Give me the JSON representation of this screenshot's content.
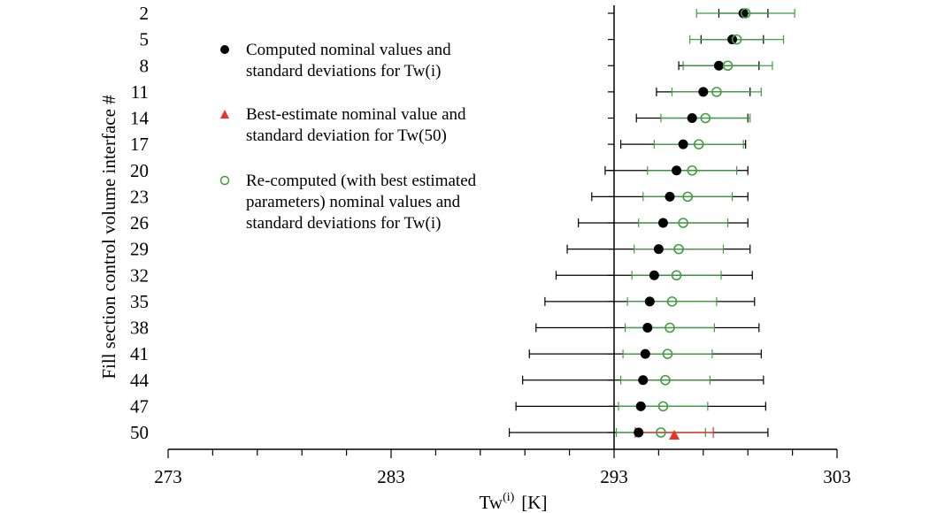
{
  "chart_data": {
    "type": "scatter",
    "orientation": "horizontal-errorbars",
    "xlabel_base": "Tw",
    "xlabel_superscript": "(i)",
    "xlabel_unit": "[K]",
    "ylabel": "Fill section control volume interface #",
    "xlim": [
      273,
      303
    ],
    "x_ticks": [
      273,
      283,
      293,
      303
    ],
    "y_categories": [
      2,
      5,
      8,
      11,
      14,
      17,
      20,
      23,
      26,
      29,
      32,
      35,
      38,
      41,
      44,
      47,
      50
    ],
    "legend_position": "top-left",
    "series": [
      {
        "name": "computed",
        "legend_lines": [
          "Computed nominal values and",
          "standard deviations for Tw(i)"
        ],
        "marker": "filled-circle",
        "color": "#000000",
        "points": [
          {
            "y": 2,
            "x": 298.8,
            "xerr": 1.1
          },
          {
            "y": 5,
            "x": 298.3,
            "xerr": 1.4
          },
          {
            "y": 8,
            "x": 297.7,
            "xerr": 1.8
          },
          {
            "y": 11,
            "x": 297.0,
            "xerr": 2.1
          },
          {
            "y": 14,
            "x": 296.5,
            "xerr": 2.5
          },
          {
            "y": 17,
            "x": 296.1,
            "xerr": 2.8
          },
          {
            "y": 20,
            "x": 295.8,
            "xerr": 3.2
          },
          {
            "y": 23,
            "x": 295.5,
            "xerr": 3.5
          },
          {
            "y": 26,
            "x": 295.2,
            "xerr": 3.8
          },
          {
            "y": 29,
            "x": 295.0,
            "xerr": 4.1
          },
          {
            "y": 32,
            "x": 294.8,
            "xerr": 4.4
          },
          {
            "y": 35,
            "x": 294.6,
            "xerr": 4.7
          },
          {
            "y": 38,
            "x": 294.5,
            "xerr": 5.0
          },
          {
            "y": 41,
            "x": 294.4,
            "xerr": 5.2
          },
          {
            "y": 44,
            "x": 294.3,
            "xerr": 5.4
          },
          {
            "y": 47,
            "x": 294.2,
            "xerr": 5.6
          },
          {
            "y": 50,
            "x": 294.1,
            "xerr": 5.8
          }
        ]
      },
      {
        "name": "best-estimate",
        "legend_lines": [
          "Best-estimate nominal value and",
          "standard deviation for Tw(50)"
        ],
        "marker": "triangle",
        "color": "#e8342a",
        "points": [
          {
            "y": 50,
            "x": 295.7,
            "xerr": 1.75
          }
        ]
      },
      {
        "name": "re-computed",
        "legend_lines": [
          "Re-computed (with best estimated",
          "parameters) nominal values and",
          "standard deviations for Tw(i)"
        ],
        "marker": "open-circle",
        "color": "#3f9e3f",
        "points": [
          {
            "y": 2,
            "x": 298.9,
            "xerr": 2.2
          },
          {
            "y": 5,
            "x": 298.5,
            "xerr": 2.1
          },
          {
            "y": 8,
            "x": 298.1,
            "xerr": 2.0
          },
          {
            "y": 11,
            "x": 297.6,
            "xerr": 2.0
          },
          {
            "y": 14,
            "x": 297.1,
            "xerr": 2.0
          },
          {
            "y": 17,
            "x": 296.8,
            "xerr": 2.0
          },
          {
            "y": 20,
            "x": 296.5,
            "xerr": 2.0
          },
          {
            "y": 23,
            "x": 296.3,
            "xerr": 2.0
          },
          {
            "y": 26,
            "x": 296.1,
            "xerr": 2.0
          },
          {
            "y": 29,
            "x": 295.9,
            "xerr": 2.0
          },
          {
            "y": 32,
            "x": 295.8,
            "xerr": 2.0
          },
          {
            "y": 35,
            "x": 295.6,
            "xerr": 2.0
          },
          {
            "y": 38,
            "x": 295.5,
            "xerr": 2.0
          },
          {
            "y": 41,
            "x": 295.4,
            "xerr": 2.0
          },
          {
            "y": 44,
            "x": 295.3,
            "xerr": 2.0
          },
          {
            "y": 47,
            "x": 295.2,
            "xerr": 2.0
          },
          {
            "y": 50,
            "x": 295.1,
            "xerr": 2.0
          }
        ]
      }
    ]
  }
}
